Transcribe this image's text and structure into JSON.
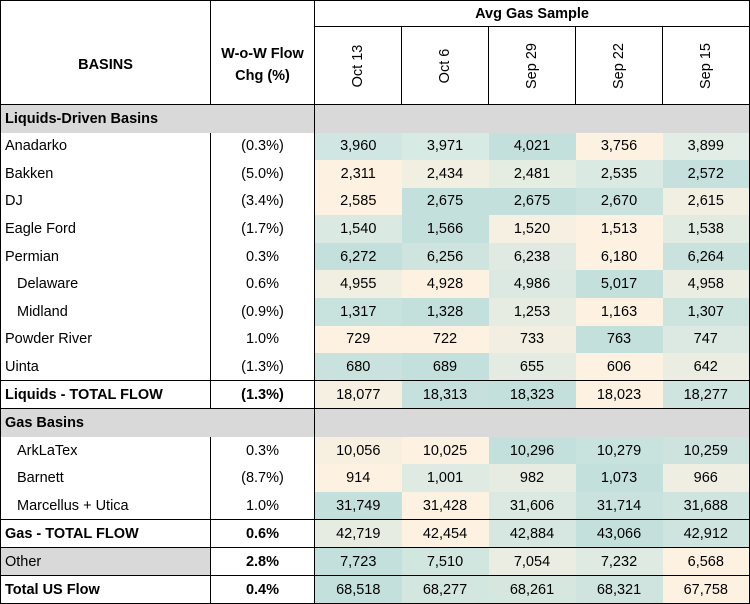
{
  "header": {
    "group_label": "Avg Gas Sample",
    "basins_label": "BASINS",
    "chg_line1": "W-o-W Flow",
    "chg_line2": "Chg (%)",
    "dates": [
      "Oct 13",
      "Oct 6",
      "Sep 29",
      "Sep 22",
      "Sep 15"
    ]
  },
  "sections": [
    {
      "title": "Liquids-Driven Basins",
      "rows": [
        {
          "name": "Anadarko",
          "indent": false,
          "chg": "(0.3%)",
          "values": [
            "3,960",
            "3,971",
            "4,021",
            "3,756",
            "3,899"
          ],
          "colors": [
            "#cfe6e2",
            "#d8eae4",
            "#c3e0dd",
            "#fdf1e1",
            "#e2ede5"
          ]
        },
        {
          "name": "Bakken",
          "indent": false,
          "chg": "(5.0%)",
          "values": [
            "2,311",
            "2,434",
            "2,481",
            "2,535",
            "2,572"
          ],
          "colors": [
            "#fdf1e1",
            "#f1efe2",
            "#e5ece2",
            "#dae9e2",
            "#c6e1dd"
          ]
        },
        {
          "name": "DJ",
          "indent": false,
          "chg": "(3.4%)",
          "values": [
            "2,585",
            "2,675",
            "2,675",
            "2,670",
            "2,615"
          ],
          "colors": [
            "#fdf1e1",
            "#c3e0dd",
            "#c3e0dd",
            "#cbe3de",
            "#f0efe2"
          ]
        },
        {
          "name": "Eagle Ford",
          "indent": false,
          "chg": "(1.7%)",
          "values": [
            "1,540",
            "1,566",
            "1,520",
            "1,513",
            "1,538"
          ],
          "colors": [
            "#dae9e2",
            "#c3e0dd",
            "#f5f0e2",
            "#fdf1e1",
            "#e2ebe2"
          ]
        },
        {
          "name": "Permian",
          "indent": false,
          "chg": "0.3%",
          "values": [
            "6,272",
            "6,256",
            "6,238",
            "6,180",
            "6,264"
          ],
          "colors": [
            "#c3e0dd",
            "#d0e4df",
            "#e0eae2",
            "#fdf1e1",
            "#c9e2dd"
          ]
        },
        {
          "name": "Delaware",
          "indent": true,
          "chg": "0.6%",
          "values": [
            "4,955",
            "4,928",
            "4,986",
            "5,017",
            "4,958"
          ],
          "colors": [
            "#f0efe2",
            "#fdf1e1",
            "#dbe9e2",
            "#c3e0dd",
            "#ecede2"
          ]
        },
        {
          "name": "Midland",
          "indent": true,
          "chg": "(0.9%)",
          "values": [
            "1,317",
            "1,328",
            "1,253",
            "1,163",
            "1,307"
          ],
          "colors": [
            "#c8e2dd",
            "#c3e0dd",
            "#e6ece2",
            "#fdf1e1",
            "#cde3de"
          ]
        },
        {
          "name": "Powder River",
          "indent": false,
          "chg": "1.0%",
          "values": [
            "729",
            "722",
            "733",
            "763",
            "747"
          ],
          "colors": [
            "#fdf1e1",
            "#fdf1e1",
            "#f2efe2",
            "#c3e0dd",
            "#dbe9e2"
          ]
        },
        {
          "name": "Uinta",
          "indent": false,
          "chg": "(1.3%)",
          "values": [
            "680",
            "689",
            "655",
            "606",
            "642"
          ],
          "colors": [
            "#c9e2dd",
            "#c3e0dd",
            "#e3ebe2",
            "#fdf1e1",
            "#ecede2"
          ]
        }
      ],
      "total": {
        "name": "Liquids - TOTAL FLOW",
        "chg": "(1.3%)",
        "values": [
          "18,077",
          "18,313",
          "18,323",
          "18,023",
          "18,277"
        ],
        "colors": [
          "#f5f0e2",
          "#c6e1dd",
          "#c3e0dd",
          "#fdf1e1",
          "#d0e4df"
        ]
      }
    },
    {
      "title": "Gas Basins",
      "rows": [
        {
          "name": "ArkLaTex",
          "indent": true,
          "chg": "0.3%",
          "values": [
            "10,056",
            "10,025",
            "10,296",
            "10,279",
            "10,259"
          ],
          "colors": [
            "#f7f0e1",
            "#fdf1e1",
            "#c3e0dd",
            "#c8e2dd",
            "#cee3de"
          ]
        },
        {
          "name": "Barnett",
          "indent": true,
          "chg": "(8.7%)",
          "values": [
            "914",
            "1,001",
            "982",
            "1,073",
            "966"
          ],
          "colors": [
            "#fdf1e1",
            "#deeae2",
            "#e6ece2",
            "#c3e0dd",
            "#eeeee2"
          ]
        },
        {
          "name": "Marcellus + Utica",
          "indent": true,
          "chg": "1.0%",
          "values": [
            "31,749",
            "31,428",
            "31,606",
            "31,714",
            "31,688"
          ],
          "colors": [
            "#c3e0dd",
            "#fdf1e1",
            "#dce9e2",
            "#c9e2dd",
            "#cfe4df"
          ]
        }
      ],
      "total": {
        "name": "Gas - TOTAL FLOW",
        "chg": "0.6%",
        "values": [
          "42,719",
          "42,454",
          "42,884",
          "43,066",
          "42,912"
        ],
        "colors": [
          "#e7ece2",
          "#fdf1e1",
          "#d5e7e0",
          "#c3e0dd",
          "#d0e4df"
        ]
      }
    }
  ],
  "other": {
    "name": "Other",
    "chg": "2.8%",
    "values": [
      "7,723",
      "7,510",
      "7,054",
      "7,232",
      "6,568"
    ],
    "colors": [
      "#c3e0dd",
      "#d2e6e0",
      "#ebede2",
      "#dfeae2",
      "#fdf1e1"
    ]
  },
  "grand_total": {
    "name": "Total US Flow",
    "chg": "0.4%",
    "values": [
      "68,518",
      "68,277",
      "68,261",
      "68,321",
      "67,758"
    ],
    "colors": [
      "#c3e0dd",
      "#d4e6e0",
      "#d6e7e0",
      "#cfe4df",
      "#fdf1e1"
    ]
  }
}
